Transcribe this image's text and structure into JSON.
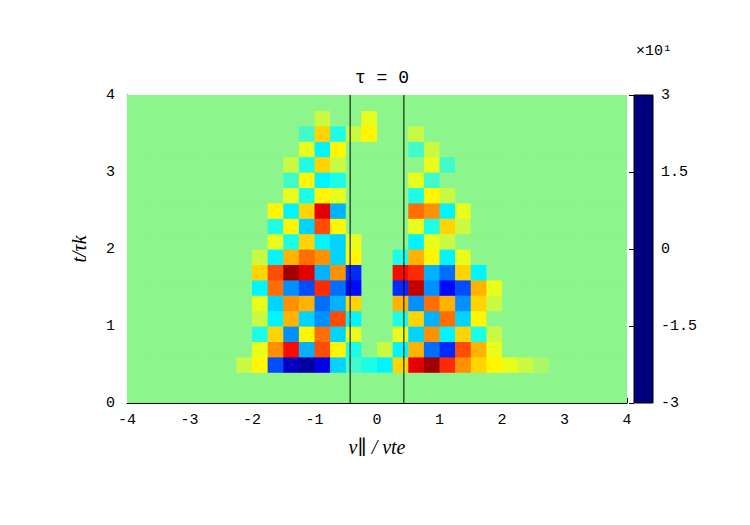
{
  "chart_data": {
    "type": "heatmap",
    "title": "τ = 0",
    "xlabel": "v∥ / vte",
    "ylabel": "t/τk",
    "xlim": [
      -4,
      4
    ],
    "ylim": [
      0,
      4
    ],
    "xticks": [
      -4,
      -3,
      -2,
      -1,
      0,
      1,
      2,
      3,
      4
    ],
    "yticks": [
      0,
      1,
      2,
      3,
      4
    ],
    "xbins": [
      -4,
      -3.75,
      -3.5,
      -3.25,
      -3,
      -2.75,
      -2.5,
      -2.25,
      -2,
      -1.75,
      -1.5,
      -1.25,
      -1,
      -0.75,
      -0.5,
      -0.25,
      0,
      0.25,
      0.5,
      0.75,
      1,
      1.25,
      1.5,
      1.75,
      2,
      2.25,
      2.5,
      2.75,
      3,
      3.25,
      3.5,
      3.75,
      4
    ],
    "ybins": [
      0,
      0.2,
      0.4,
      0.6,
      0.8,
      1,
      1.2,
      1.4,
      1.6,
      1.8,
      2,
      2.2,
      2.4,
      2.6,
      2.8,
      3,
      3.2,
      3.4,
      3.6,
      3.8,
      4
    ],
    "z": [
      [
        0,
        0,
        0,
        0,
        0,
        0,
        0,
        0,
        0,
        0,
        0,
        0,
        0,
        0,
        0,
        0,
        0,
        0,
        0,
        0,
        0,
        0,
        0,
        0,
        0,
        0,
        0,
        0,
        0,
        0,
        0,
        0
      ],
      [
        0,
        0,
        0,
        0,
        0,
        0,
        0,
        0,
        0,
        0,
        0,
        0,
        0,
        0,
        0,
        0,
        0,
        0,
        0,
        0,
        0,
        0,
        0,
        0,
        0,
        0,
        0,
        0,
        0,
        0,
        0,
        0
      ],
      [
        0,
        0,
        0,
        0,
        0,
        0,
        0,
        4,
        8,
        -18,
        -26,
        -28,
        -24,
        -10,
        -4,
        -6,
        -8,
        10,
        24,
        28,
        20,
        14,
        10,
        8,
        6,
        4,
        2,
        0,
        0,
        0,
        0,
        0
      ],
      [
        0,
        0,
        0,
        0,
        0,
        0,
        0,
        0,
        6,
        14,
        22,
        -12,
        18,
        8,
        -6,
        0,
        4,
        -8,
        12,
        -16,
        -20,
        18,
        12,
        6,
        0,
        0,
        0,
        0,
        0,
        0,
        0,
        0
      ],
      [
        0,
        0,
        0,
        0,
        0,
        0,
        0,
        0,
        -6,
        10,
        -14,
        8,
        16,
        -10,
        6,
        0,
        0,
        6,
        -10,
        14,
        -8,
        10,
        -6,
        4,
        0,
        0,
        0,
        0,
        0,
        0,
        0,
        0
      ],
      [
        0,
        0,
        0,
        0,
        0,
        0,
        0,
        0,
        4,
        -8,
        12,
        -10,
        -14,
        18,
        -8,
        0,
        0,
        -6,
        10,
        -12,
        16,
        -10,
        8,
        0,
        0,
        0,
        0,
        0,
        0,
        0,
        0,
        0
      ],
      [
        0,
        0,
        0,
        0,
        0,
        0,
        0,
        0,
        6,
        -10,
        14,
        12,
        -16,
        -12,
        10,
        0,
        0,
        12,
        -14,
        16,
        12,
        -14,
        10,
        4,
        0,
        0,
        0,
        0,
        0,
        0,
        0,
        0
      ],
      [
        0,
        0,
        0,
        0,
        0,
        0,
        0,
        0,
        -8,
        16,
        -14,
        -18,
        20,
        -16,
        -22,
        0,
        0,
        -20,
        26,
        -14,
        -22,
        -18,
        12,
        6,
        0,
        0,
        0,
        0,
        0,
        0,
        0,
        0
      ],
      [
        0,
        0,
        0,
        0,
        0,
        0,
        0,
        0,
        10,
        18,
        28,
        24,
        -12,
        14,
        -20,
        0,
        0,
        22,
        20,
        -12,
        -16,
        10,
        -8,
        0,
        0,
        0,
        0,
        0,
        0,
        0,
        0,
        0
      ],
      [
        0,
        0,
        0,
        0,
        0,
        0,
        0,
        0,
        4,
        -8,
        12,
        16,
        14,
        -10,
        8,
        0,
        0,
        -6,
        12,
        8,
        -8,
        6,
        0,
        0,
        0,
        0,
        0,
        0,
        0,
        0,
        0,
        0
      ],
      [
        0,
        0,
        0,
        0,
        0,
        0,
        0,
        0,
        0,
        6,
        -6,
        10,
        -8,
        -10,
        6,
        0,
        0,
        0,
        -8,
        6,
        4,
        0,
        0,
        0,
        0,
        0,
        0,
        0,
        0,
        0,
        0,
        0
      ],
      [
        0,
        0,
        0,
        0,
        0,
        0,
        0,
        0,
        0,
        -6,
        8,
        -10,
        18,
        8,
        0,
        0,
        0,
        0,
        6,
        -6,
        10,
        4,
        0,
        0,
        0,
        0,
        0,
        0,
        0,
        0,
        0,
        0
      ],
      [
        0,
        0,
        0,
        0,
        0,
        0,
        0,
        0,
        0,
        8,
        -8,
        10,
        24,
        -12,
        0,
        0,
        0,
        0,
        16,
        14,
        -8,
        6,
        0,
        0,
        0,
        0,
        0,
        0,
        0,
        0,
        0,
        0
      ],
      [
        0,
        0,
        0,
        0,
        0,
        0,
        0,
        0,
        0,
        0,
        6,
        -6,
        8,
        6,
        0,
        0,
        0,
        0,
        -6,
        8,
        4,
        0,
        0,
        0,
        0,
        0,
        0,
        0,
        0,
        0,
        0,
        0
      ],
      [
        0,
        0,
        0,
        0,
        0,
        0,
        0,
        0,
        0,
        0,
        -4,
        8,
        -8,
        -6,
        0,
        0,
        0,
        0,
        6,
        -4,
        0,
        0,
        0,
        0,
        0,
        0,
        0,
        0,
        0,
        0,
        0,
        0
      ],
      [
        0,
        0,
        0,
        0,
        0,
        0,
        0,
        0,
        0,
        0,
        4,
        -6,
        10,
        4,
        0,
        0,
        0,
        0,
        0,
        6,
        -4,
        0,
        0,
        0,
        0,
        0,
        0,
        0,
        0,
        0,
        0,
        0
      ],
      [
        0,
        0,
        0,
        0,
        0,
        0,
        0,
        0,
        0,
        0,
        0,
        6,
        -8,
        8,
        0,
        0,
        0,
        0,
        -4,
        4,
        0,
        0,
        0,
        0,
        0,
        0,
        0,
        0,
        0,
        0,
        0,
        0
      ],
      [
        0,
        0,
        0,
        0,
        0,
        0,
        0,
        0,
        0,
        0,
        0,
        -4,
        10,
        -6,
        4,
        8,
        0,
        0,
        4,
        0,
        0,
        0,
        0,
        0,
        0,
        0,
        0,
        0,
        0,
        0,
        0,
        0
      ],
      [
        0,
        0,
        0,
        0,
        0,
        0,
        0,
        0,
        0,
        0,
        0,
        0,
        4,
        0,
        0,
        6,
        0,
        0,
        0,
        0,
        0,
        0,
        0,
        0,
        0,
        0,
        0,
        0,
        0,
        0,
        0,
        0
      ],
      [
        0,
        0,
        0,
        0,
        0,
        0,
        0,
        0,
        0,
        0,
        0,
        0,
        0,
        0,
        0,
        0,
        0,
        0,
        0,
        0,
        0,
        0,
        0,
        0,
        0,
        0,
        0,
        0,
        0,
        0,
        0,
        0
      ]
    ],
    "colorbar": {
      "range": [
        -30,
        30
      ],
      "ticks": [
        {
          "value": -30,
          "label": "-3"
        },
        {
          "value": -15,
          "label": "-1.5"
        },
        {
          "value": 0,
          "label": "0"
        },
        {
          "value": 15,
          "label": "1.5"
        },
        {
          "value": 30,
          "label": "3"
        }
      ],
      "label": "×10¹"
    },
    "vlines": [
      -0.43,
      0.43
    ]
  }
}
